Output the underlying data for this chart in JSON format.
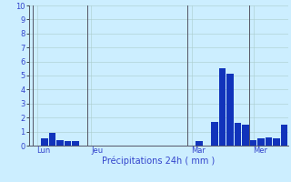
{
  "title": "Précipitations 24h ( mm )",
  "background_color": "#cceeff",
  "bar_color": "#1133bb",
  "grid_color": "#aacccc",
  "text_color": "#3344cc",
  "ylim": [
    0,
    10
  ],
  "yticks": [
    0,
    1,
    2,
    3,
    4,
    5,
    6,
    7,
    8,
    9,
    10
  ],
  "day_labels": [
    "Lun",
    "Jeu",
    "Mar",
    "Mer"
  ],
  "bar_values": [
    0,
    0.5,
    0.9,
    0.4,
    0.3,
    0.3,
    0,
    0,
    0,
    0,
    0,
    0,
    0,
    0,
    0,
    0,
    0,
    0,
    0,
    0,
    0,
    0.3,
    0,
    1.7,
    5.5,
    5.1,
    1.6,
    1.5,
    0.4,
    0.5,
    0.6,
    0.5,
    1.5
  ],
  "n_bars": 33,
  "vline_color": "#555566",
  "spine_color": "#555566",
  "ylabel_fontsize": 6,
  "xlabel_fontsize": 7,
  "tick_label_fontsize": 6
}
